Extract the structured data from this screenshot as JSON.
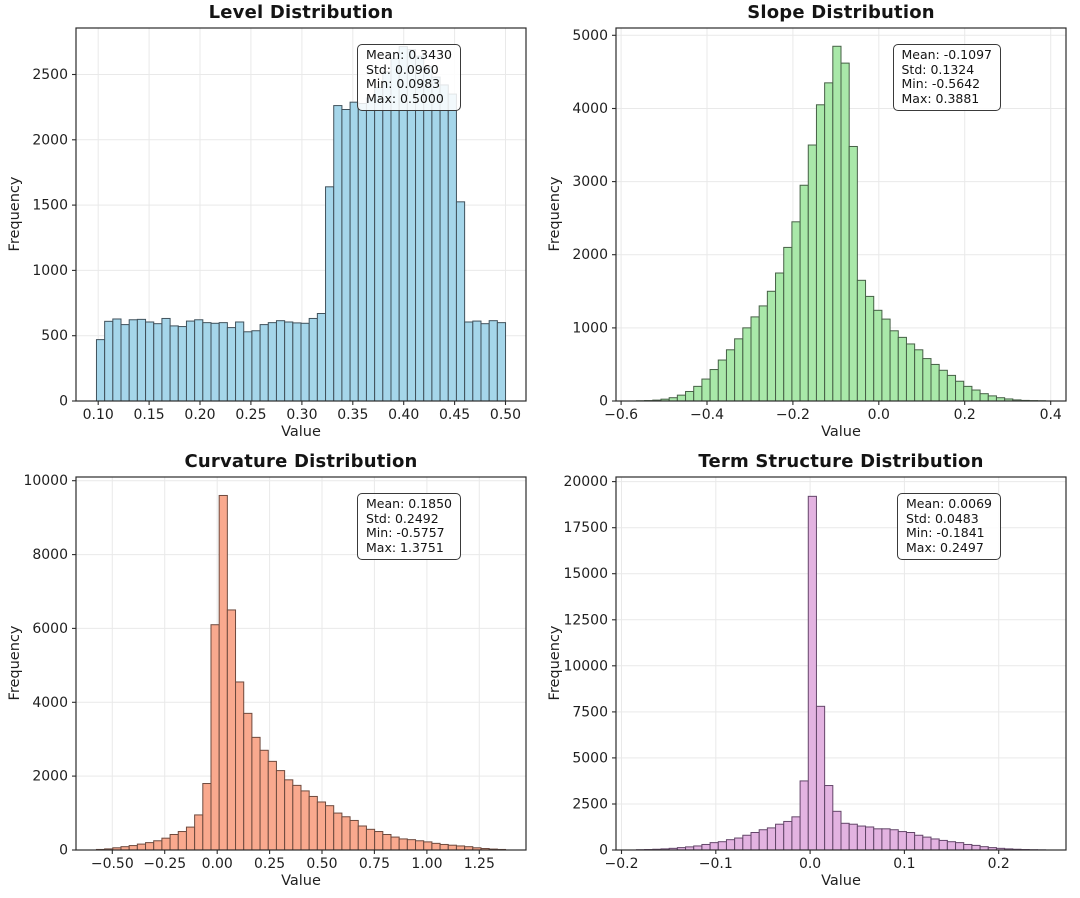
{
  "figure": {
    "background": "#ffffff",
    "grid_color": "#e9e9e9",
    "spine_color": "#2b2b2b",
    "text_color": "#141414",
    "stats_box_bg": "rgba(255,255,255,0.85)",
    "stats_box_border": "#3a3a3a"
  },
  "chart_data": [
    {
      "type": "bar",
      "subtype": "histogram",
      "title": "Level Distribution",
      "xlabel": "Value",
      "ylabel": "Frequency",
      "fill": "#a5d6ea",
      "edge": "#40525c",
      "stats": [
        "Mean: 0.3430",
        "Std: 0.0960",
        "Min: 0.0983",
        "Max: 0.5000"
      ],
      "bins": {
        "start": 0.0983,
        "end": 0.5,
        "count": 50
      },
      "values": [
        470,
        610,
        628,
        585,
        622,
        625,
        605,
        592,
        632,
        575,
        570,
        612,
        622,
        600,
        595,
        600,
        562,
        605,
        530,
        538,
        585,
        600,
        615,
        605,
        598,
        595,
        632,
        670,
        1640,
        2262,
        2232,
        2288,
        2278,
        2320,
        2400,
        2520,
        2620,
        2714,
        2690,
        2640,
        2560,
        2480,
        2420,
        2350,
        1525,
        605,
        612,
        592,
        615,
        600
      ],
      "xlim": [
        0.0782,
        0.5201
      ],
      "ylim": [
        0,
        2856
      ],
      "grid": true,
      "xticks": [
        0.1,
        0.15,
        0.2,
        0.25,
        0.3,
        0.35,
        0.4,
        0.45,
        0.5
      ],
      "xtick_labels": [
        "0.10",
        "0.15",
        "0.20",
        "0.25",
        "0.30",
        "0.35",
        "0.40",
        "0.45",
        "0.50"
      ],
      "yticks": [
        0,
        500,
        1000,
        1500,
        2000,
        2500
      ],
      "ytick_labels": [
        "0",
        "500",
        "1000",
        "1500",
        "2000",
        "2500"
      ]
    },
    {
      "type": "bar",
      "subtype": "histogram",
      "title": "Slope Distribution",
      "xlabel": "Value",
      "ylabel": "Frequency",
      "fill": "#a9e8a9",
      "edge": "#466046",
      "stats": [
        "Mean: -0.1097",
        "Std: 0.1324",
        "Min: -0.5642",
        "Max: 0.3881"
      ],
      "bins": {
        "start": -0.5642,
        "end": 0.3881,
        "count": 50
      },
      "values": [
        3,
        6,
        12,
        25,
        45,
        80,
        130,
        200,
        300,
        430,
        560,
        700,
        850,
        1000,
        1150,
        1300,
        1500,
        1750,
        2100,
        2450,
        2950,
        3500,
        4050,
        4350,
        4850,
        4620,
        3480,
        1650,
        1430,
        1240,
        1120,
        960,
        870,
        780,
        700,
        580,
        500,
        420,
        350,
        270,
        200,
        150,
        100,
        70,
        45,
        28,
        15,
        8,
        5,
        3
      ],
      "xlim": [
        -0.6118,
        0.4357
      ],
      "ylim": [
        0,
        5100
      ],
      "grid": true,
      "xticks": [
        -0.6,
        -0.4,
        -0.2,
        0.0,
        0.2,
        0.4
      ],
      "xtick_labels": [
        "−0.6",
        "−0.4",
        "−0.2",
        "0.0",
        "0.2",
        "0.4"
      ],
      "yticks": [
        0,
        1000,
        2000,
        3000,
        4000,
        5000
      ],
      "ytick_labels": [
        "0",
        "1000",
        "2000",
        "3000",
        "4000",
        "5000"
      ]
    },
    {
      "type": "bar",
      "subtype": "histogram",
      "title": "Curvature Distribution",
      "xlabel": "Value",
      "ylabel": "Frequency",
      "fill": "#f9a98e",
      "edge": "#6e4a3e",
      "stats": [
        "Mean: 0.1850",
        "Std: 0.2492",
        "Min: -0.5757",
        "Max: 1.3751"
      ],
      "bins": {
        "start": -0.5757,
        "end": 1.3751,
        "count": 50
      },
      "values": [
        15,
        30,
        60,
        90,
        120,
        160,
        200,
        250,
        320,
        420,
        500,
        620,
        950,
        1800,
        6100,
        9600,
        6500,
        4550,
        3700,
        3050,
        2700,
        2400,
        2150,
        1900,
        1750,
        1600,
        1450,
        1300,
        1200,
        1000,
        900,
        800,
        650,
        560,
        500,
        420,
        350,
        300,
        280,
        250,
        220,
        180,
        150,
        130,
        110,
        90,
        60,
        40,
        25,
        15
      ],
      "xlim": [
        -0.6732,
        1.4727
      ],
      "ylim": [
        0,
        10100
      ],
      "grid": true,
      "xticks": [
        -0.5,
        -0.25,
        0.0,
        0.25,
        0.5,
        0.75,
        1.0,
        1.25
      ],
      "xtick_labels": [
        "−0.50",
        "−0.25",
        "0.00",
        "0.25",
        "0.50",
        "0.75",
        "1.00",
        "1.25"
      ],
      "yticks": [
        0,
        2000,
        4000,
        6000,
        8000,
        10000
      ],
      "ytick_labels": [
        "0",
        "2000",
        "4000",
        "6000",
        "8000",
        "10000"
      ]
    },
    {
      "type": "bar",
      "subtype": "histogram",
      "title": "Term Structure Distribution",
      "xlabel": "Value",
      "ylabel": "Frequency",
      "fill": "#e3b3e1",
      "edge": "#64466a",
      "stats": [
        "Mean: 0.0069",
        "Std: 0.0483",
        "Min: -0.1841",
        "Max: 0.2497"
      ],
      "bins": {
        "start": -0.1841,
        "end": 0.2497,
        "count": 50
      },
      "values": [
        15,
        25,
        40,
        60,
        90,
        130,
        170,
        220,
        300,
        400,
        450,
        560,
        650,
        800,
        950,
        1100,
        1200,
        1400,
        1550,
        1800,
        3750,
        19200,
        7800,
        3500,
        2100,
        1450,
        1400,
        1300,
        1250,
        1150,
        1150,
        1100,
        1000,
        950,
        800,
        700,
        600,
        520,
        450,
        400,
        300,
        250,
        180,
        130,
        90,
        60,
        40,
        25,
        15,
        8
      ],
      "xlim": [
        -0.2058,
        0.2714
      ],
      "ylim": [
        0,
        20250
      ],
      "grid": true,
      "xticks": [
        -0.2,
        -0.1,
        0.0,
        0.1,
        0.2
      ],
      "xtick_labels": [
        "−0.2",
        "−0.1",
        "0.0",
        "0.1",
        "0.2"
      ],
      "yticks": [
        0,
        2500,
        5000,
        7500,
        10000,
        12500,
        15000,
        17500,
        20000
      ],
      "ytick_labels": [
        "0",
        "2500",
        "5000",
        "7500",
        "10000",
        "12500",
        "15000",
        "17500",
        "20000"
      ]
    }
  ]
}
